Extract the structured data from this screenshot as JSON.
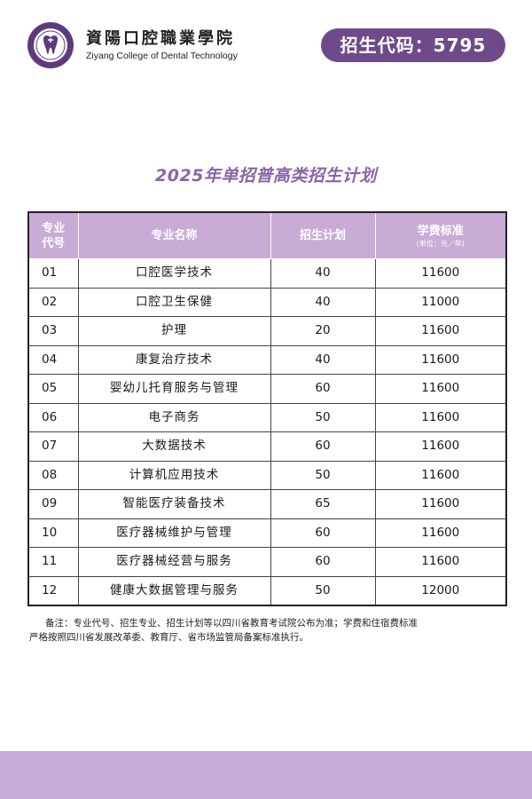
{
  "header": {
    "logo_name_cn": "資陽口腔職業學院",
    "logo_name_en": "Ziyang College of Dental Technology",
    "admission_code": "招生代码：5795"
  },
  "title": "2025年单招普高类招生计划",
  "table": {
    "headers": {
      "code_line1": "专业",
      "code_line2": "代号",
      "name": "专业名称",
      "plan": "招生计划",
      "fee": "学费标准",
      "fee_unit": "(单位：元／年)"
    },
    "rows": [
      {
        "code": "01",
        "name": "口腔医学技术",
        "plan": "40",
        "fee": "11600"
      },
      {
        "code": "02",
        "name": "口腔卫生保健",
        "plan": "40",
        "fee": "11000"
      },
      {
        "code": "03",
        "name": "护理",
        "plan": "20",
        "fee": "11600"
      },
      {
        "code": "04",
        "name": "康复治疗技术",
        "plan": "40",
        "fee": "11600"
      },
      {
        "code": "05",
        "name": "婴幼儿托育服务与管理",
        "plan": "60",
        "fee": "11600"
      },
      {
        "code": "06",
        "name": "电子商务",
        "plan": "50",
        "fee": "11600"
      },
      {
        "code": "07",
        "name": "大数据技术",
        "plan": "60",
        "fee": "11600"
      },
      {
        "code": "08",
        "name": "计算机应用技术",
        "plan": "50",
        "fee": "11600"
      },
      {
        "code": "09",
        "name": "智能医疗装备技术",
        "plan": "65",
        "fee": "11600"
      },
      {
        "code": "10",
        "name": "医疗器械维护与管理",
        "plan": "60",
        "fee": "11600"
      },
      {
        "code": "11",
        "name": "医疗器械经营与服务",
        "plan": "60",
        "fee": "11600"
      },
      {
        "code": "12",
        "name": "健康大数据管理与服务",
        "plan": "50",
        "fee": "12000"
      }
    ]
  },
  "note": {
    "line1": "备注：专业代号、招生专业、招生计划等以四川省教育考试院公布为准；学费和住宿费标准",
    "line2": "严格按照四川省发展改革委、教育厅、省市场监管局备案标准执行。"
  },
  "colors": {
    "brand_purple": "#6e4a8a",
    "header_purple": "#c9acd6",
    "title_purple": "#8a64a8",
    "footer_purple": "#c6abd6"
  }
}
